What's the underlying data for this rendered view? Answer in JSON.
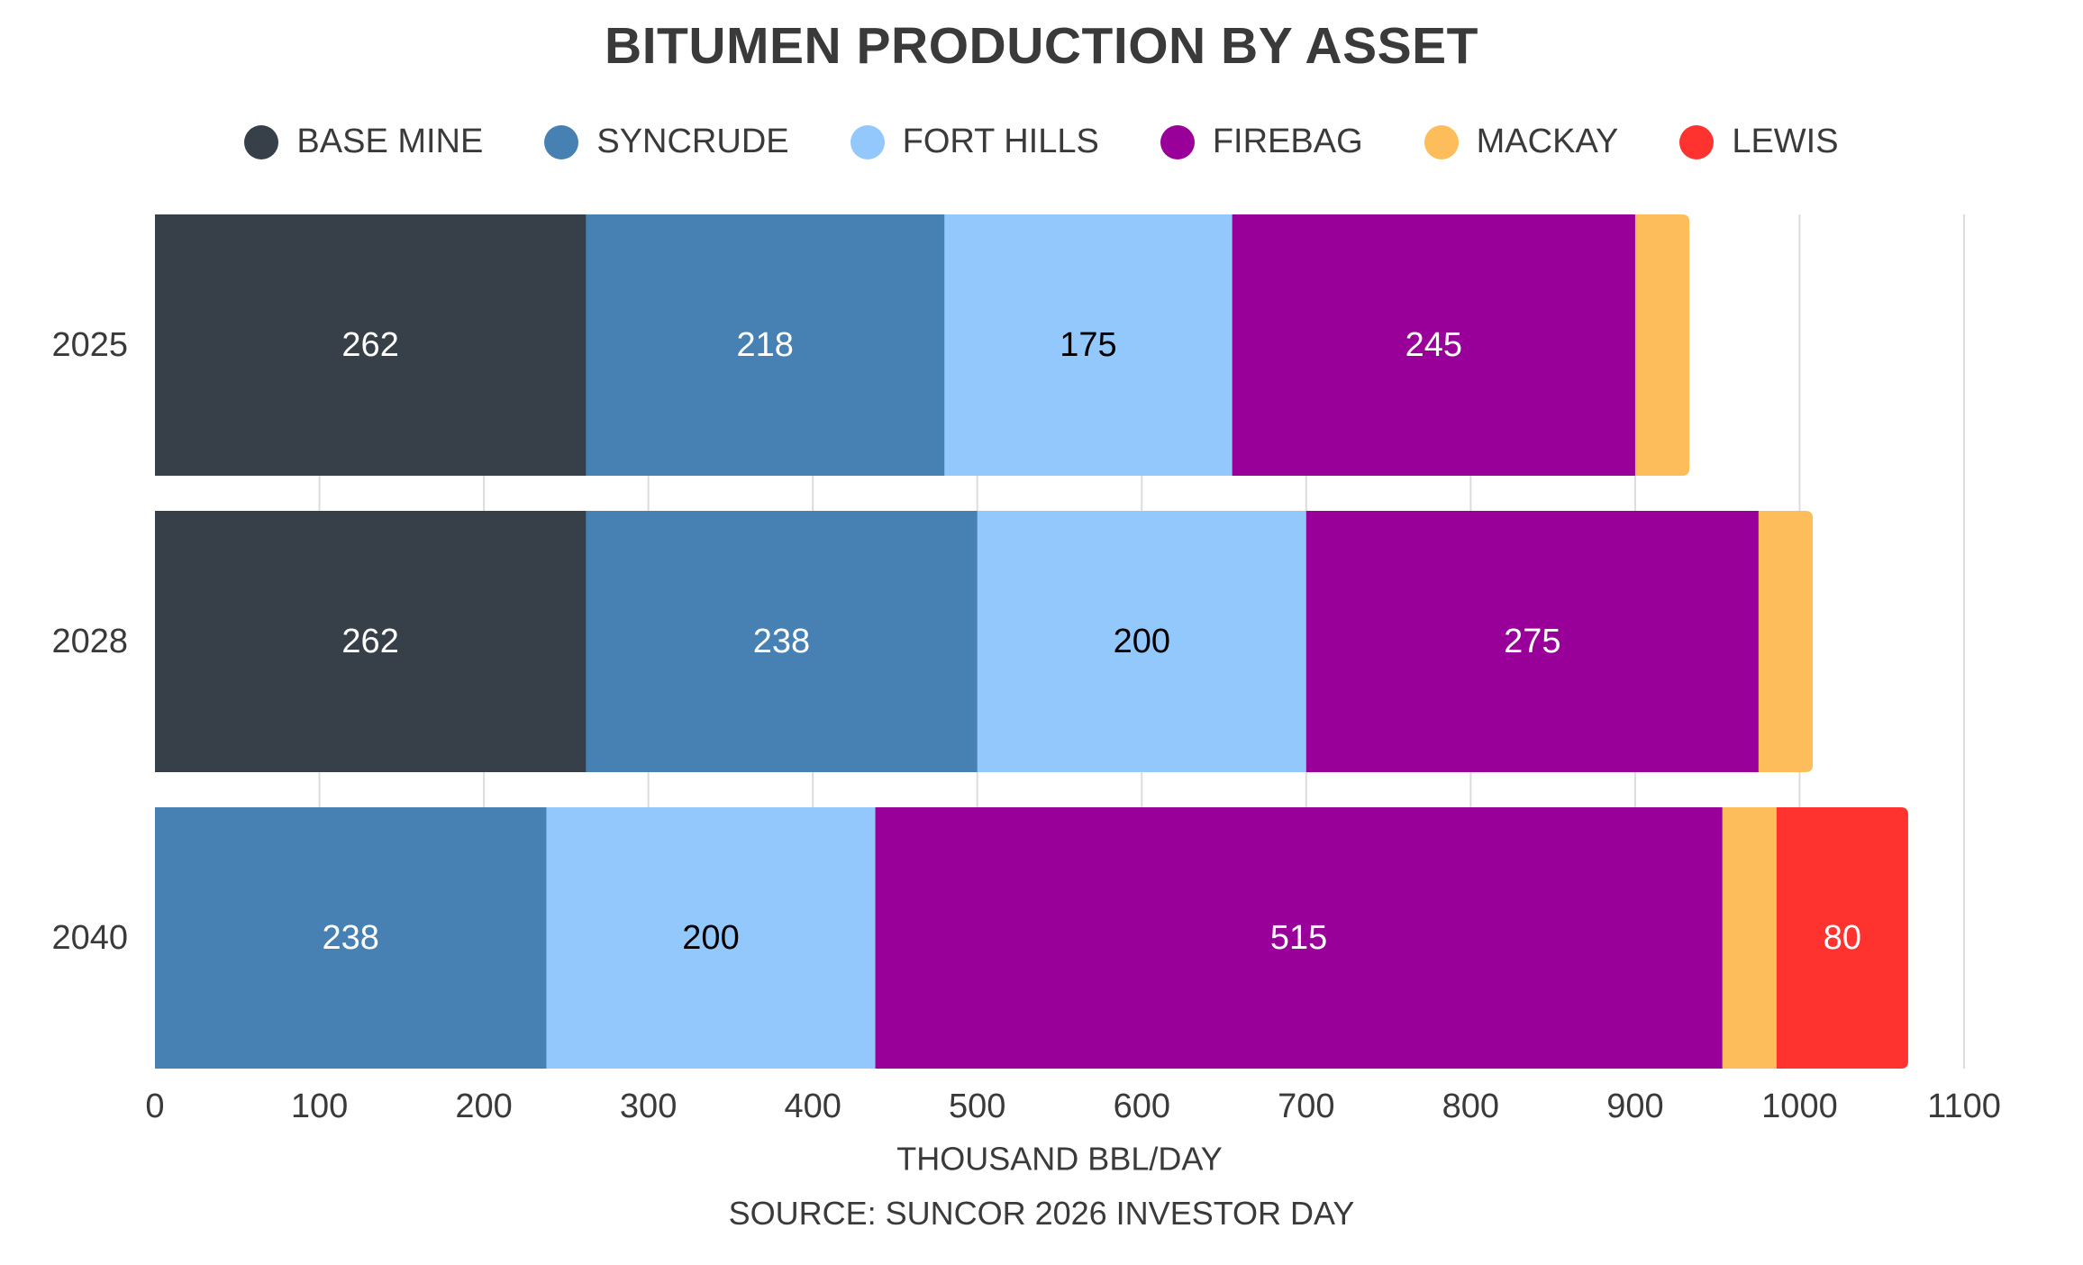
{
  "chart_data": {
    "type": "bar",
    "orientation": "horizontal",
    "stacked": true,
    "title": "BITUMEN PRODUCTION BY ASSET",
    "xlabel": "THOUSAND BBL/DAY",
    "source": "SOURCE: SUNCOR 2026 INVESTOR DAY",
    "categories": [
      "2025",
      "2028",
      "2040"
    ],
    "xlim": [
      0,
      1100
    ],
    "xticks": [
      0,
      100,
      200,
      300,
      400,
      500,
      600,
      700,
      800,
      900,
      1000,
      1100
    ],
    "grid": "vertical",
    "legend_position": "top",
    "series": [
      {
        "name": "BASE MINE",
        "color": "#373f48",
        "label_color": "#ffffff",
        "values": [
          262,
          262,
          0
        ],
        "labels": [
          "262",
          "262",
          ""
        ]
      },
      {
        "name": "SYNCRUDE",
        "color": "#4781b4",
        "label_color": "#ffffff",
        "values": [
          218,
          238,
          238
        ],
        "labels": [
          "218",
          "238",
          "238"
        ]
      },
      {
        "name": "FORT HILLS",
        "color": "#93c8fd",
        "label_color": "#000000",
        "values": [
          175,
          200,
          200
        ],
        "labels": [
          "175",
          "200",
          "200"
        ]
      },
      {
        "name": "FIREBAG",
        "color": "#990099",
        "label_color": "#ffffff",
        "values": [
          245,
          275,
          515
        ],
        "labels": [
          "245",
          "275",
          "515"
        ]
      },
      {
        "name": "MACKAY",
        "color": "#fdbd5a",
        "label_color": "#000000",
        "values": [
          33,
          33,
          33
        ],
        "labels": [
          "",
          "",
          ""
        ]
      },
      {
        "name": "LEWIS",
        "color": "#fe3330",
        "label_color": "#ffffff",
        "values": [
          0,
          0,
          80
        ],
        "labels": [
          "",
          "",
          "80"
        ]
      }
    ]
  }
}
